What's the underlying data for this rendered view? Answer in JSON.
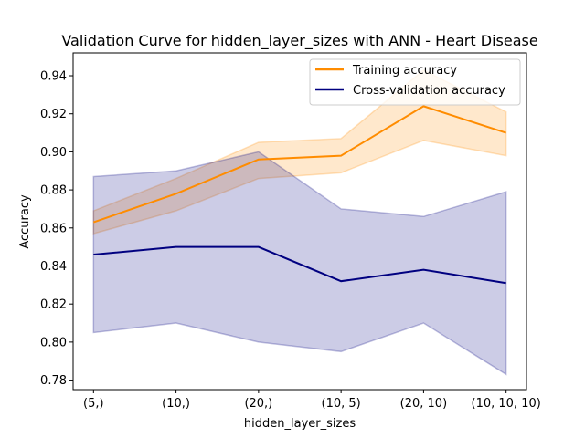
{
  "chart_data": {
    "type": "line",
    "title": "Validation Curve for hidden_layer_sizes with ANN - Heart Disease",
    "xlabel": "hidden_layer_sizes",
    "ylabel": "Accuracy",
    "categories": [
      "(5,)",
      "(10,)",
      "(20,)",
      "(10, 5)",
      "(20, 10)",
      "(10, 10, 10)"
    ],
    "ylim": [
      0.775,
      0.952
    ],
    "yticks": [
      0.78,
      0.8,
      0.82,
      0.84,
      0.86,
      0.88,
      0.9,
      0.92,
      0.94
    ],
    "ytick_labels": [
      "0.78",
      "0.80",
      "0.82",
      "0.84",
      "0.86",
      "0.88",
      "0.90",
      "0.92",
      "0.94"
    ],
    "grid": false,
    "legend_position": "top-right",
    "series": [
      {
        "name": "Training accuracy",
        "color": "#ff8c00",
        "values": [
          0.863,
          0.878,
          0.896,
          0.898,
          0.924,
          0.91
        ],
        "lower": [
          0.857,
          0.869,
          0.886,
          0.889,
          0.906,
          0.898
        ],
        "upper": [
          0.869,
          0.886,
          0.905,
          0.907,
          0.943,
          0.921
        ]
      },
      {
        "name": "Cross-validation accuracy",
        "color": "#000080",
        "values": [
          0.846,
          0.85,
          0.85,
          0.832,
          0.838,
          0.831
        ],
        "lower": [
          0.805,
          0.81,
          0.8,
          0.795,
          0.81,
          0.783
        ],
        "upper": [
          0.887,
          0.89,
          0.9,
          0.87,
          0.866,
          0.879
        ]
      }
    ]
  }
}
